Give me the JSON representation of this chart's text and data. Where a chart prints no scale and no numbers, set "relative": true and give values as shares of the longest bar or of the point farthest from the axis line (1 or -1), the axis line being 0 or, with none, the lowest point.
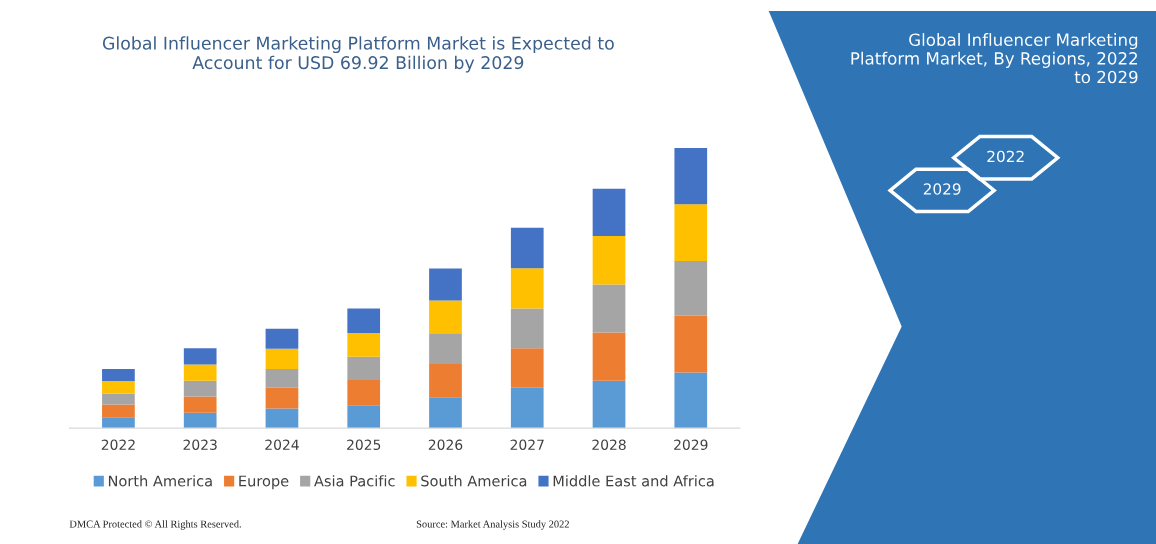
{
  "chart_data": {
    "type": "bar",
    "stacked": true,
    "relative": true,
    "title": "Global Influencer Marketing Platform Market is Expected to\nAccount for USD 69.92 Billion by 2029",
    "categories": [
      "2022",
      "2023",
      "2024",
      "2025",
      "2026",
      "2027",
      "2028",
      "2029"
    ],
    "series": [
      {
        "name": "North America",
        "color": "#5b9bd5",
        "values": [
          0.039,
          0.055,
          0.07,
          0.082,
          0.11,
          0.144,
          0.169,
          0.199
        ]
      },
      {
        "name": "Europe",
        "color": "#ed7d31",
        "values": [
          0.045,
          0.058,
          0.074,
          0.09,
          0.119,
          0.141,
          0.172,
          0.202
        ]
      },
      {
        "name": "Asia Pacific",
        "color": "#a5a5a5",
        "values": [
          0.04,
          0.056,
          0.067,
          0.083,
          0.11,
          0.142,
          0.172,
          0.196
        ]
      },
      {
        "name": "South America",
        "color": "#ffc000",
        "values": [
          0.044,
          0.058,
          0.072,
          0.085,
          0.117,
          0.144,
          0.173,
          0.202
        ]
      },
      {
        "name": "Middle East and Africa",
        "color": "#4472c4",
        "values": [
          0.043,
          0.058,
          0.072,
          0.087,
          0.114,
          0.144,
          0.169,
          0.201
        ]
      }
    ],
    "legend": "bottom",
    "grid": false,
    "annotations": [
      "Global Influencer Marketing\nPlatform Market, By Regions, 2022\nto 2029",
      "2022",
      "2029",
      "DMCA Protected © All Rights Reserved.",
      "Source: Market Analysis Study 2022"
    ]
  }
}
